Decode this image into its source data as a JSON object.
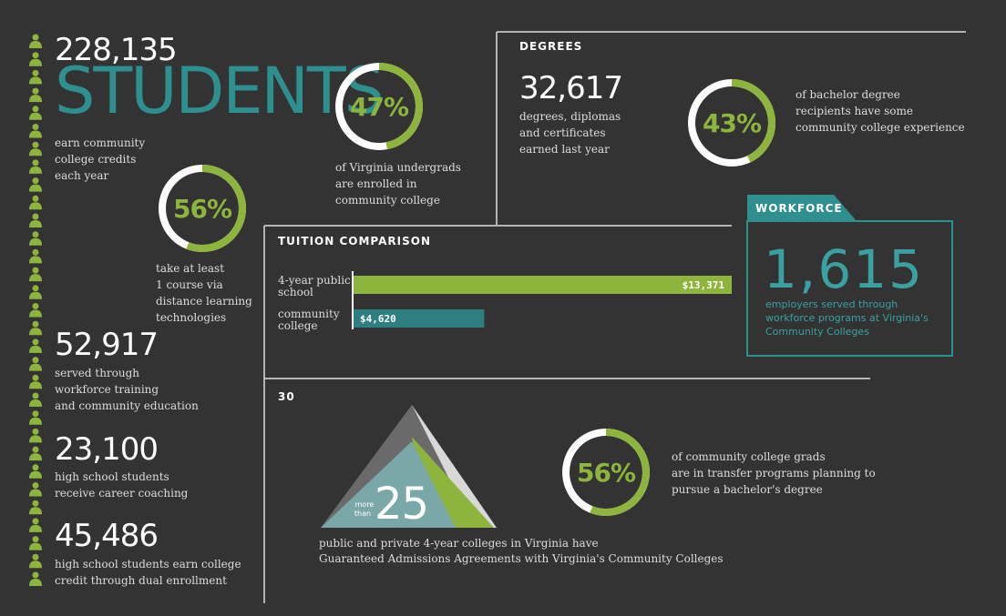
{
  "students": {
    "count": "228,135",
    "title": "STUDENTS",
    "text": [
      "earn community",
      "college credits",
      "each year"
    ]
  },
  "donuts": [
    {
      "value": 56,
      "label": "56%",
      "text": [
        "take at least",
        "1 course via",
        "distance learning",
        "technologies"
      ]
    },
    {
      "value": 47,
      "label": "47%",
      "text": [
        "of Virginia undergrads",
        "are enrolled in",
        "community college"
      ]
    },
    {
      "value": 43,
      "label": "43%",
      "text": [
        "of bachelor degree",
        "recipients have some",
        "community college experience"
      ]
    },
    {
      "value": 56,
      "label": "56%",
      "text": [
        "of community college grads",
        "are in transfer programs planning to",
        "pursue a bachelor's degree"
      ]
    }
  ],
  "stats": [
    {
      "count": "52,917",
      "text": [
        "served through",
        "workforce training",
        "and community education"
      ]
    },
    {
      "count": "23,100",
      "text": [
        "high school students",
        "receive career coaching"
      ]
    },
    {
      "count": "45,486",
      "text": [
        "high school students earn college",
        "credit through dual enrollment"
      ]
    }
  ],
  "degrees": {
    "heading": "DEGREES",
    "count": "32,617",
    "text": [
      "degrees, diplomas",
      "and certificates",
      "earned last year"
    ]
  },
  "tuition": {
    "heading": "TUITION COMPARISON",
    "bars": [
      {
        "name": [
          "4-year public",
          "school"
        ],
        "value": 13371,
        "label": "$13,371",
        "color": "#8db43c"
      },
      {
        "name": [
          "community",
          "college"
        ],
        "value": 4620,
        "label": "$4,620",
        "color": "#2e7f7f"
      }
    ]
  },
  "workforce": {
    "heading": "WORKFORCE",
    "count": "1,615",
    "text": [
      "employers served through",
      "workforce programs at Virginia's",
      "Community Colleges"
    ]
  },
  "transfer": {
    "heading": "30",
    "badge": [
      "more",
      "than",
      "25"
    ],
    "text": [
      "public and private 4-year colleges in Virginia have",
      "Guaranteed Admissions Agreements with Virginia's Community Colleges"
    ]
  }
}
